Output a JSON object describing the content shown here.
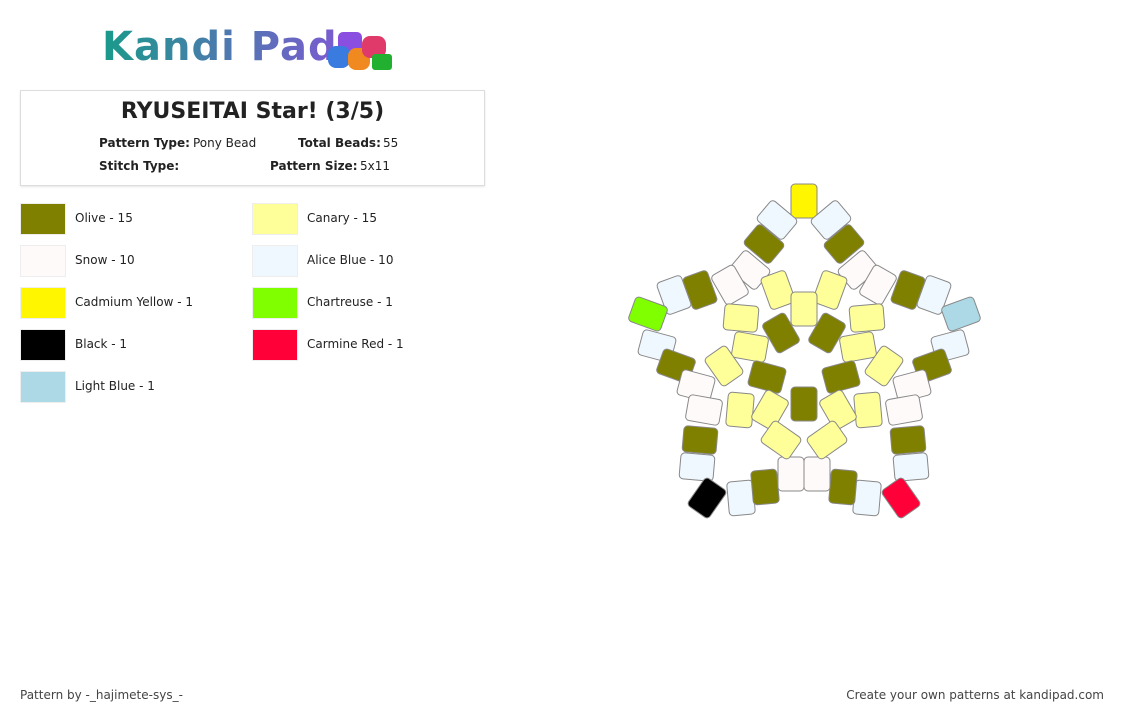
{
  "header": {
    "logo": "Kandi Pad"
  },
  "pattern": {
    "title": "RYUSEITAI Star! (3/5)",
    "pattern_type_label": "Pattern Type:",
    "pattern_type": "Pony Bead",
    "total_beads_label": "Total Beads:",
    "total_beads": "55",
    "stitch_type_label": "Stitch Type:",
    "pattern_size_label": "Pattern Size:",
    "pattern_size": "5x11"
  },
  "legend": [
    {
      "label": "Olive - 15",
      "color": "#808000"
    },
    {
      "label": "Canary - 15",
      "color": "#ffff99"
    },
    {
      "label": "Snow - 10",
      "color": "#fffafa"
    },
    {
      "label": "Alice Blue - 10",
      "color": "#f0f8ff"
    },
    {
      "label": "Cadmium Yellow - 1",
      "color": "#fff600"
    },
    {
      "label": "Chartreuse - 1",
      "color": "#7fff00"
    },
    {
      "label": "Black - 1",
      "color": "#000000"
    },
    {
      "label": "Carmine Red - 1",
      "color": "#ff0038"
    },
    {
      "label": "Light Blue - 1",
      "color": "#add8e6"
    }
  ],
  "footer": {
    "author": "Pattern by -_hajimete-sys_-",
    "promo": "Create your own patterns at kandipad.com"
  }
}
